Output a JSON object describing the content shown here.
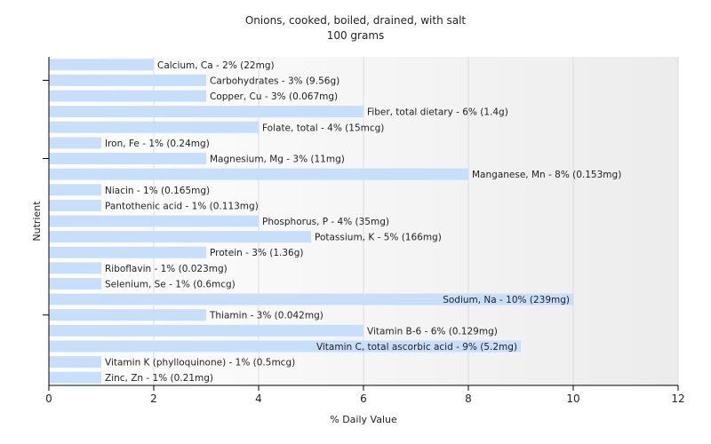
{
  "chart_data": {
    "type": "bar",
    "orientation": "horizontal",
    "title": "Onions, cooked, boiled, drained, with salt",
    "subtitle": "100 grams",
    "xlabel": "% Daily Value",
    "ylabel": "Nutrient",
    "xlim": [
      0,
      12
    ],
    "xticks": [
      "0",
      "2",
      "4",
      "6",
      "8",
      "10",
      "12"
    ],
    "grid": "vertical",
    "bar_color": "#c7dffb",
    "categories": [
      "Calcium, Ca",
      "Carbohydrates",
      "Copper, Cu",
      "Fiber, total dietary",
      "Folate, total",
      "Iron, Fe",
      "Magnesium, Mg",
      "Manganese, Mn",
      "Niacin",
      "Pantothenic acid",
      "Phosphorus, P",
      "Potassium, K",
      "Protein",
      "Riboflavin",
      "Selenium, Se",
      "Sodium, Na",
      "Thiamin",
      "Vitamin B-6",
      "Vitamin C, total ascorbic acid",
      "Vitamin K (phylloquinone)",
      "Zinc, Zn"
    ],
    "values": [
      2,
      3,
      3,
      6,
      4,
      1,
      3,
      8,
      1,
      1,
      4,
      5,
      3,
      1,
      1,
      10,
      3,
      6,
      9,
      1,
      1
    ],
    "labels": [
      "Calcium, Ca - 2% (22mg)",
      "Carbohydrates - 3% (9.56g)",
      "Copper, Cu - 3% (0.067mg)",
      "Fiber, total dietary - 6% (1.4g)",
      "Folate, total - 4% (15mcg)",
      "Iron, Fe - 1% (0.24mg)",
      "Magnesium, Mg - 3% (11mg)",
      "Manganese, Mn - 8% (0.153mg)",
      "Niacin - 1% (0.165mg)",
      "Pantothenic acid - 1% (0.113mg)",
      "Phosphorus, P - 4% (35mg)",
      "Potassium, K - 5% (166mg)",
      "Protein - 3% (1.36g)",
      "Riboflavin - 1% (0.023mg)",
      "Selenium, Se - 1% (0.6mcg)",
      "Sodium, Na - 10% (239mg)",
      "Thiamin - 3% (0.042mg)",
      "Vitamin B-6 - 6% (0.129mg)",
      "Vitamin C, total ascorbic acid - 9% (5.2mg)",
      "Vitamin K (phylloquinone) - 1% (0.5mcg)",
      "Zinc, Zn - 1% (0.21mg)"
    ]
  }
}
